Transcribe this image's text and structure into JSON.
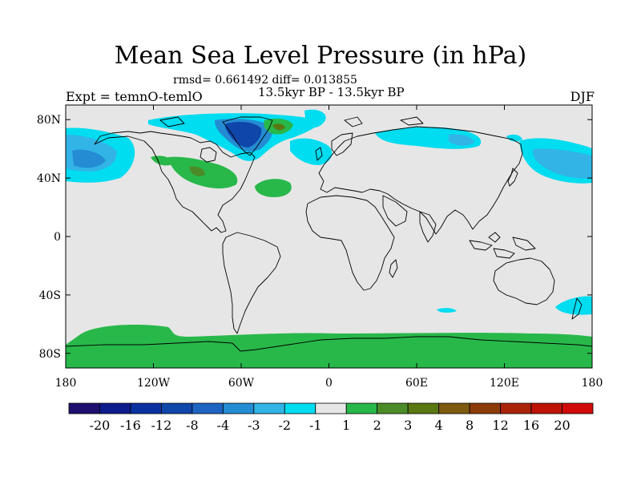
{
  "title": "Mean Sea Level Pressure (in hPa)",
  "stats": "rmsd= 0.661492 diff= 0.013855",
  "period": "13.5kyr BP - 13.5kyr BP",
  "expt": "Expt = temnO-temlO",
  "season": "DJF",
  "map": {
    "projection": "cylindrical-equidistant",
    "lon_range": [
      -180,
      180
    ],
    "lat_range": [
      -90,
      90
    ],
    "background_color": "#e6e6e6",
    "coastline_color": "#000000",
    "lat_ticks": [
      {
        "value": 80,
        "label": "80N"
      },
      {
        "value": 40,
        "label": "40N"
      },
      {
        "value": 0,
        "label": "0"
      },
      {
        "value": -40,
        "label": "40S"
      },
      {
        "value": -80,
        "label": "80S"
      }
    ],
    "lon_ticks": [
      {
        "value": -180,
        "label": "180"
      },
      {
        "value": -120,
        "label": "120W"
      },
      {
        "value": -60,
        "label": "60W"
      },
      {
        "value": 0,
        "label": "0"
      },
      {
        "value": 60,
        "label": "60E"
      },
      {
        "value": 120,
        "label": "120E"
      },
      {
        "value": 180,
        "label": "180"
      }
    ]
  },
  "colorbar": {
    "colors": [
      "#1e0f6e",
      "#0d1c8c",
      "#0a32a0",
      "#0f46aa",
      "#1e64c3",
      "#238cd2",
      "#32b4e6",
      "#00dcf0",
      "#e6e6e6",
      "#28b84a",
      "#4b8c28",
      "#5a7812",
      "#7d5a0f",
      "#8c3c0a",
      "#aa230a",
      "#be1405",
      "#d20a0a"
    ],
    "labels": [
      "-20",
      "-16",
      "-12",
      "-8",
      "-4",
      "-3",
      "-2",
      "-1",
      "1",
      "2",
      "3",
      "4",
      "8",
      "12",
      "16",
      "20"
    ]
  }
}
